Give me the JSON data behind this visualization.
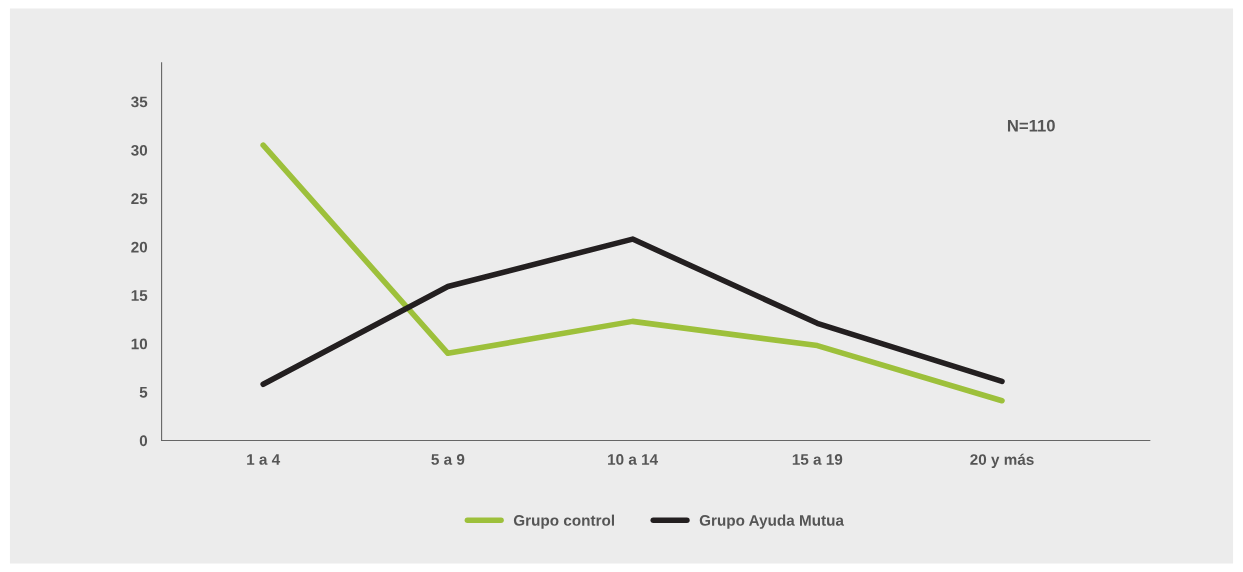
{
  "chart_data": {
    "type": "line",
    "categories": [
      "1 a 4",
      "5 a 9",
      "10 a 14",
      "15 a 19",
      "20 y más"
    ],
    "series": [
      {
        "name": "Grupo control",
        "color": "#9dc03b",
        "values": [
          30.5,
          9.0,
          12.3,
          9.8,
          4.1
        ]
      },
      {
        "name": "Grupo Ayuda Mutua",
        "color": "#231f20",
        "values": [
          5.8,
          15.9,
          20.8,
          12.1,
          6.1
        ]
      }
    ],
    "ylim": [
      0,
      39
    ],
    "yticks": [
      0,
      5,
      10,
      15,
      20,
      25,
      30,
      35
    ],
    "grid": false,
    "legend": "bottom",
    "marker": "none",
    "line_style": "solid",
    "annotations": [
      "N=110"
    ]
  }
}
